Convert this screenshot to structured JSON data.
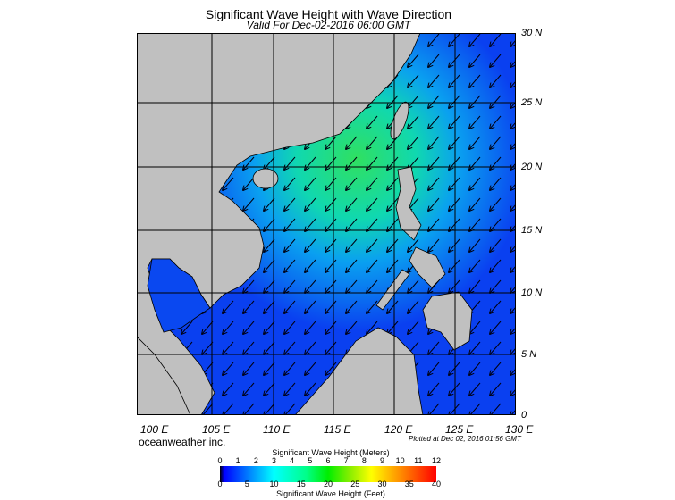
{
  "title": "Significant Wave Height with Wave Direction",
  "subtitle": "Valid For Dec-02-2016 06:00 GMT",
  "lat_labels": [
    "30 N",
    "25 N",
    "20 N",
    "15 N",
    "10 N",
    "5 N",
    "0"
  ],
  "lon_labels": [
    "100 E",
    "105 E",
    "110 E",
    "115 E",
    "120 E",
    "125 E",
    "130 E"
  ],
  "brand": "oceanweather inc.",
  "plotted": "Plotted at Dec 02, 2016 01:56 GMT",
  "colorbar": {
    "meters_title": "Significant Wave Height (Meters)",
    "meters_ticks": [
      "0",
      "1",
      "2",
      "3",
      "4",
      "5",
      "6",
      "7",
      "8",
      "9",
      "10",
      "11",
      "12"
    ],
    "feet_ticks": [
      "0",
      "5",
      "10",
      "15",
      "20",
      "25",
      "30",
      "35",
      "40"
    ],
    "feet_title": "Significant Wave Height (Feet)"
  },
  "colors": {
    "land": "#c0c0c0",
    "ocean": "#0a3cf0",
    "high": "#20e060"
  }
}
